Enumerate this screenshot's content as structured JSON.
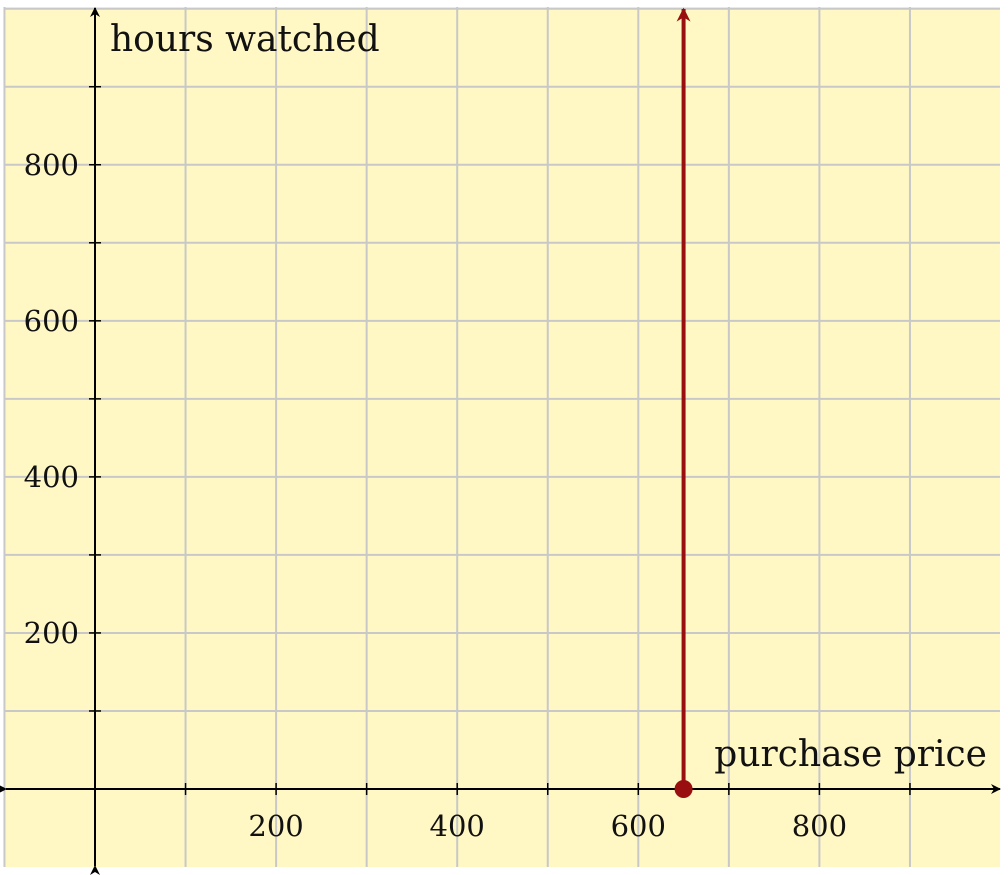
{
  "colors": {
    "background": "#fff8c4",
    "grid": "#c8c8c8",
    "axis": "#000000",
    "series": "#990f0f"
  },
  "chart_data": {
    "type": "line",
    "xlabel": "purchase price",
    "ylabel": "hours watched",
    "xlim": [
      -100,
      1000
    ],
    "ylim": [
      -100,
      1000
    ],
    "grid": true,
    "grid_step": 100,
    "xticks": [
      200,
      400,
      600,
      800
    ],
    "yticks": [
      200,
      400,
      600,
      800
    ],
    "xtick_labels": [
      "200",
      "400",
      "600",
      "800"
    ],
    "ytick_labels": [
      "200",
      "400",
      "600",
      "800"
    ],
    "series": [
      {
        "style": "vertical ray with closed start point and arrow",
        "color": "#990f0f",
        "x": [
          650,
          650
        ],
        "y": [
          0,
          1000
        ]
      }
    ]
  }
}
